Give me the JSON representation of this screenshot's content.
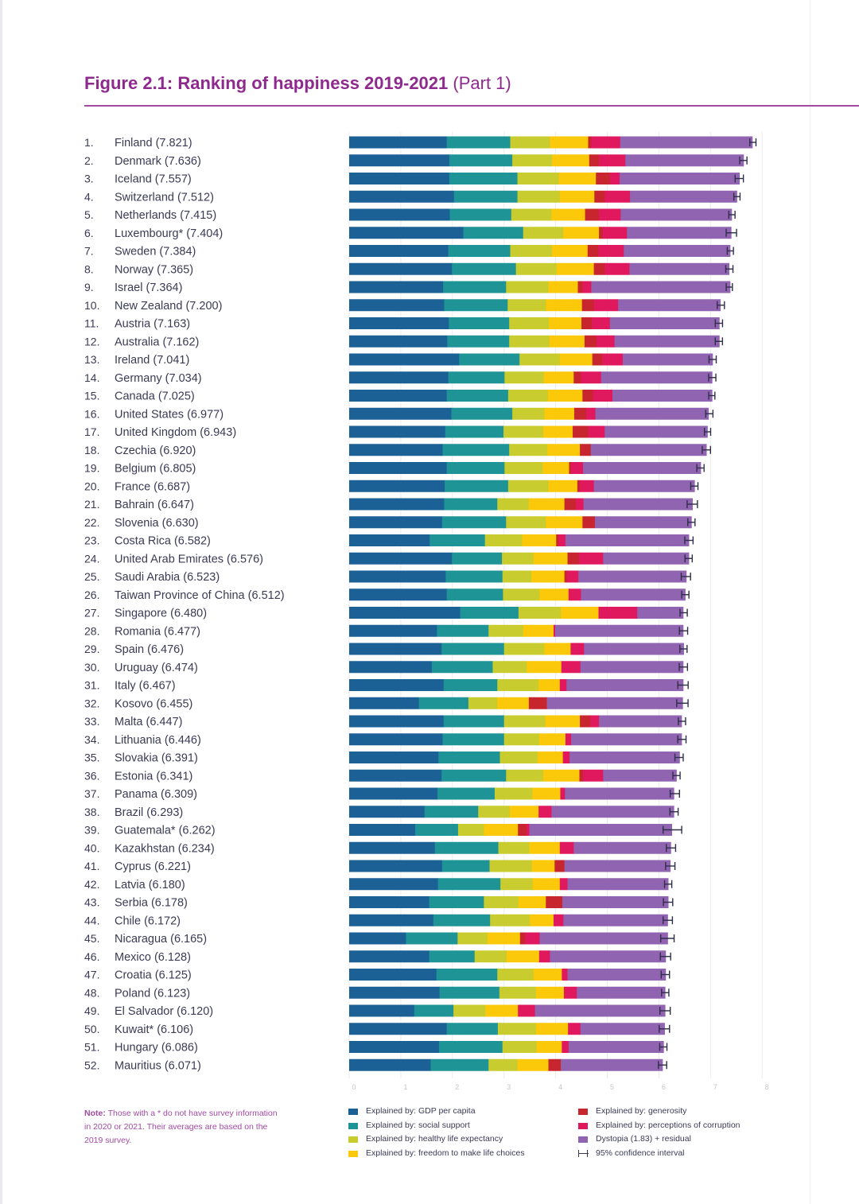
{
  "title": {
    "main": "Figure 2.1: Ranking of happiness 2019-2021",
    "part": "(Part 1)"
  },
  "note": {
    "label": "Note:",
    "text": "Those with a * do not have survey information in 2020 or 2021. Their averages are based on the 2019 survey."
  },
  "legend": {
    "gdp": "Explained by: GDP per capita",
    "social": "Explained by: social support",
    "health": "Explained by: healthy life expectancy",
    "freedom": "Explained by: freedom to make life choices",
    "generosity": "Explained by: generosity",
    "corruption": "Explained by: perceptions of corruption",
    "dystopia": "Dystopia (1.83) + residual",
    "ci": "95% confidence interval"
  },
  "colors": {
    "gdp": "#1b6196",
    "social": "#1e9497",
    "health": "#c8cc2e",
    "freedom": "#fbc80a",
    "generosity": "#c7262e",
    "corruption": "#e0185e",
    "dystopia": "#9064b0",
    "title": "#8e2a8e"
  },
  "chart_data": {
    "type": "bar",
    "orientation": "horizontal",
    "stacked": true,
    "xlim": [
      0,
      8
    ],
    "x_ticks": [
      "0",
      "1",
      "2",
      "3",
      "4",
      "5",
      "6",
      "7",
      "8"
    ],
    "grid": true,
    "series_names": [
      "Explained by: GDP per capita",
      "Explained by: social support",
      "Explained by: healthy life expectancy",
      "Explained by: freedom to make life choices",
      "Explained by: generosity",
      "Explained by: perceptions of corruption",
      "Dystopia (1.83) + residual"
    ],
    "rows": [
      {
        "rank": "1.",
        "label": "Finland (7.821)",
        "score": 7.821,
        "ci": 0.06,
        "comps": [
          1.89,
          1.23,
          0.77,
          0.74,
          0.06,
          0.56,
          2.56
        ]
      },
      {
        "rank": "2.",
        "label": "Denmark (7.636)",
        "score": 7.636,
        "ci": 0.07,
        "comps": [
          1.94,
          1.22,
          0.77,
          0.72,
          0.19,
          0.51,
          2.29
        ]
      },
      {
        "rank": "3.",
        "label": "Iceland (7.557)",
        "score": 7.557,
        "ci": 0.08,
        "comps": [
          1.94,
          1.32,
          0.8,
          0.72,
          0.27,
          0.19,
          2.32
        ]
      },
      {
        "rank": "4.",
        "label": "Switzerland (7.512)",
        "score": 7.512,
        "ci": 0.06,
        "comps": [
          2.03,
          1.23,
          0.82,
          0.67,
          0.2,
          0.49,
          2.07
        ]
      },
      {
        "rank": "5.",
        "label": "Netherlands (7.415)",
        "score": 7.415,
        "ci": 0.06,
        "comps": [
          1.95,
          1.19,
          0.78,
          0.65,
          0.27,
          0.42,
          2.15
        ]
      },
      {
        "rank": "6.",
        "label": "Luxembourg* (7.404)",
        "score": 7.404,
        "ci": 0.1,
        "comps": [
          2.21,
          1.16,
          0.78,
          0.69,
          0.07,
          0.47,
          2.02
        ]
      },
      {
        "rank": "7.",
        "label": "Sweden (7.384)",
        "score": 7.384,
        "ci": 0.06,
        "comps": [
          1.92,
          1.2,
          0.81,
          0.69,
          0.21,
          0.49,
          2.06
        ]
      },
      {
        "rank": "8.",
        "label": "Norway (7.365)",
        "score": 7.365,
        "ci": 0.07,
        "comps": [
          1.99,
          1.24,
          0.79,
          0.72,
          0.21,
          0.48,
          1.93
        ]
      },
      {
        "rank": "9.",
        "label": "Israel (7.364)",
        "score": 7.364,
        "ci": 0.06,
        "comps": [
          1.82,
          1.22,
          0.82,
          0.57,
          0.09,
          0.17,
          2.69
        ]
      },
      {
        "rank": "10.",
        "label": "New Zealand (7.200)",
        "score": 7.2,
        "ci": 0.07,
        "comps": [
          1.84,
          1.23,
          0.74,
          0.7,
          0.23,
          0.47,
          1.98
        ]
      },
      {
        "rank": "11.",
        "label": "Austria (7.163)",
        "score": 7.163,
        "ci": 0.07,
        "comps": [
          1.93,
          1.17,
          0.77,
          0.63,
          0.2,
          0.35,
          2.12
        ]
      },
      {
        "rank": "12.",
        "label": "Australia (7.162)",
        "score": 7.162,
        "ci": 0.07,
        "comps": [
          1.9,
          1.2,
          0.78,
          0.68,
          0.23,
          0.35,
          2.03
        ]
      },
      {
        "rank": "13.",
        "label": "Ireland (7.041)",
        "score": 7.041,
        "ci": 0.07,
        "comps": [
          2.13,
          1.17,
          0.78,
          0.63,
          0.19,
          0.4,
          1.74
        ]
      },
      {
        "rank": "14.",
        "label": "Germany (7.034)",
        "score": 7.034,
        "ci": 0.07,
        "comps": [
          1.92,
          1.09,
          0.76,
          0.58,
          0.14,
          0.39,
          2.15
        ]
      },
      {
        "rank": "15.",
        "label": "Canada (7.025)",
        "score": 7.025,
        "ci": 0.06,
        "comps": [
          1.89,
          1.19,
          0.77,
          0.67,
          0.2,
          0.38,
          1.93
        ]
      },
      {
        "rank": "16.",
        "label": "United States (6.977)",
        "score": 6.977,
        "ci": 0.07,
        "comps": [
          1.98,
          1.18,
          0.62,
          0.58,
          0.23,
          0.18,
          2.19
        ]
      },
      {
        "rank": "17.",
        "label": "United Kingdom (6.943)",
        "score": 6.943,
        "ci": 0.06,
        "comps": [
          1.86,
          1.13,
          0.77,
          0.57,
          0.3,
          0.32,
          1.99
        ]
      },
      {
        "rank": "18.",
        "label": "Czechia (6.920)",
        "score": 6.92,
        "ci": 0.08,
        "comps": [
          1.81,
          1.29,
          0.74,
          0.63,
          0.21,
          0.0,
          2.24
        ]
      },
      {
        "rank": "19.",
        "label": "Belgium (6.805)",
        "score": 6.805,
        "ci": 0.07,
        "comps": [
          1.89,
          1.12,
          0.74,
          0.51,
          0.04,
          0.23,
          2.28
        ]
      },
      {
        "rank": "20.",
        "label": "France (6.687)",
        "score": 6.687,
        "ci": 0.07,
        "comps": [
          1.85,
          1.23,
          0.78,
          0.56,
          0.05,
          0.27,
          1.95
        ]
      },
      {
        "rank": "21.",
        "label": "Bahrain (6.647)",
        "score": 6.647,
        "ci": 0.1,
        "comps": [
          1.84,
          1.03,
          0.61,
          0.69,
          0.22,
          0.15,
          2.11
        ]
      },
      {
        "rank": "22.",
        "label": "Slovenia (6.630)",
        "score": 6.63,
        "ci": 0.07,
        "comps": [
          1.8,
          1.24,
          0.77,
          0.71,
          0.24,
          0.0,
          1.87
        ]
      },
      {
        "rank": "23.",
        "label": "Costa Rica (6.582)",
        "score": 6.582,
        "ci": 0.08,
        "comps": [
          1.56,
          1.07,
          0.72,
          0.66,
          0.05,
          0.13,
          2.39
        ]
      },
      {
        "rank": "24.",
        "label": "United Arab Emirates (6.576)",
        "score": 6.576,
        "ci": 0.07,
        "comps": [
          1.99,
          0.97,
          0.61,
          0.66,
          0.22,
          0.47,
          1.66
        ]
      },
      {
        "rank": "25.",
        "label": "Saudi Arabia (6.523)",
        "score": 6.523,
        "ci": 0.09,
        "comps": [
          1.87,
          1.1,
          0.56,
          0.64,
          0.05,
          0.22,
          2.09
        ]
      },
      {
        "rank": "26.",
        "label": "Taiwan Province of China (6.512)",
        "score": 6.512,
        "ci": 0.07,
        "comps": [
          1.89,
          1.09,
          0.71,
          0.56,
          0.0,
          0.24,
          2.02
        ]
      },
      {
        "rank": "27.",
        "label": "Singapore (6.480)",
        "score": 6.48,
        "ci": 0.07,
        "comps": [
          2.15,
          1.13,
          0.82,
          0.73,
          0.0,
          0.75,
          0.89
        ]
      },
      {
        "rank": "28.",
        "label": "Romania (6.477)",
        "score": 6.477,
        "ci": 0.08,
        "comps": [
          1.7,
          1.0,
          0.67,
          0.59,
          0.0,
          0.03,
          2.48
        ]
      },
      {
        "rank": "29.",
        "label": "Spain (6.476)",
        "score": 6.476,
        "ci": 0.07,
        "comps": [
          1.79,
          1.21,
          0.78,
          0.51,
          0.0,
          0.26,
          1.93
        ]
      },
      {
        "rank": "30.",
        "label": "Uruguay (6.474)",
        "score": 6.474,
        "ci": 0.08,
        "comps": [
          1.6,
          1.18,
          0.66,
          0.67,
          0.0,
          0.37,
          1.99
        ]
      },
      {
        "rank": "31.",
        "label": "Italy (6.467)",
        "score": 6.467,
        "ci": 0.1,
        "comps": [
          1.83,
          1.04,
          0.8,
          0.41,
          0.0,
          0.13,
          2.26
        ]
      },
      {
        "rank": "32.",
        "label": "Kosovo (6.455)",
        "score": 6.455,
        "ci": 0.11,
        "comps": [
          1.35,
          0.96,
          0.56,
          0.61,
          0.35,
          0.0,
          2.63
        ]
      },
      {
        "rank": "33.",
        "label": "Malta (6.447)",
        "score": 6.447,
        "ci": 0.07,
        "comps": [
          1.83,
          1.17,
          0.8,
          0.67,
          0.2,
          0.17,
          1.6
        ]
      },
      {
        "rank": "34.",
        "label": "Lithuania (6.446)",
        "score": 6.446,
        "ci": 0.08,
        "comps": [
          1.81,
          1.19,
          0.68,
          0.51,
          0.0,
          0.11,
          2.14
        ]
      },
      {
        "rank": "35.",
        "label": "Slovakia (6.391)",
        "score": 6.391,
        "ci": 0.08,
        "comps": [
          1.73,
          1.19,
          0.73,
          0.49,
          0.0,
          0.13,
          2.13
        ]
      },
      {
        "rank": "36.",
        "label": "Estonia (6.341)",
        "score": 6.341,
        "ci": 0.07,
        "comps": [
          1.79,
          1.25,
          0.72,
          0.7,
          0.07,
          0.39,
          1.42
        ]
      },
      {
        "rank": "37.",
        "label": "Panama (6.309)",
        "score": 6.309,
        "ci": 0.09,
        "comps": [
          1.71,
          1.11,
          0.73,
          0.54,
          0.0,
          0.09,
          2.11
        ]
      },
      {
        "rank": "38.",
        "label": "Brazil (6.293)",
        "score": 6.293,
        "ci": 0.08,
        "comps": [
          1.46,
          1.04,
          0.61,
          0.56,
          0.0,
          0.25,
          2.37
        ]
      },
      {
        "rank": "39.",
        "label": "Guatemala* (6.262)",
        "score": 6.262,
        "ci": 0.18,
        "comps": [
          1.28,
          0.83,
          0.5,
          0.66,
          0.16,
          0.06,
          2.76
        ]
      },
      {
        "rank": "40.",
        "label": "Kazakhstan (6.234)",
        "score": 6.234,
        "ci": 0.09,
        "comps": [
          1.66,
          1.23,
          0.6,
          0.59,
          0.0,
          0.27,
          1.88
        ]
      },
      {
        "rank": "41.",
        "label": "Cyprus (6.221)",
        "score": 6.221,
        "ci": 0.09,
        "comps": [
          1.8,
          0.92,
          0.82,
          0.44,
          0.19,
          0.0,
          2.05
        ]
      },
      {
        "rank": "42.",
        "label": "Latvia (6.180)",
        "score": 6.18,
        "ci": 0.07,
        "comps": [
          1.72,
          1.21,
          0.62,
          0.53,
          0.0,
          0.15,
          1.95
        ]
      },
      {
        "rank": "43.",
        "label": "Serbia (6.178)",
        "score": 6.178,
        "ci": 0.09,
        "comps": [
          1.55,
          1.06,
          0.67,
          0.53,
          0.32,
          0.0,
          2.05
        ]
      },
      {
        "rank": "44.",
        "label": "Chile (6.172)",
        "score": 6.172,
        "ci": 0.09,
        "comps": [
          1.63,
          1.1,
          0.77,
          0.46,
          0.0,
          0.19,
          2.02
        ]
      },
      {
        "rank": "45.",
        "label": "Nicaragua (6.165)",
        "score": 6.165,
        "ci": 0.13,
        "comps": [
          1.1,
          1.0,
          0.58,
          0.63,
          0.1,
          0.28,
          2.48
        ]
      },
      {
        "rank": "46.",
        "label": "Mexico (6.128)",
        "score": 6.128,
        "ci": 0.1,
        "comps": [
          1.55,
          0.88,
          0.62,
          0.63,
          0.0,
          0.21,
          2.24
        ]
      },
      {
        "rank": "47.",
        "label": "Croatia (6.125)",
        "score": 6.125,
        "ci": 0.08,
        "comps": [
          1.69,
          1.18,
          0.7,
          0.55,
          0.0,
          0.11,
          1.9
        ]
      },
      {
        "rank": "48.",
        "label": "Poland (6.123)",
        "score": 6.123,
        "ci": 0.07,
        "comps": [
          1.75,
          1.16,
          0.71,
          0.54,
          0.0,
          0.25,
          1.71
        ]
      },
      {
        "rank": "49.",
        "label": "El Salvador (6.120)",
        "score": 6.12,
        "ci": 0.1,
        "comps": [
          1.26,
          0.76,
          0.62,
          0.63,
          0.0,
          0.33,
          2.52
        ]
      },
      {
        "rank": "50.",
        "label": "Kuwait* (6.106)",
        "score": 6.106,
        "ci": 0.1,
        "comps": [
          1.89,
          0.99,
          0.74,
          0.62,
          0.0,
          0.24,
          1.63
        ]
      },
      {
        "rank": "51.",
        "label": "Hungary (6.086)",
        "score": 6.086,
        "ci": 0.07,
        "comps": [
          1.74,
          1.23,
          0.66,
          0.49,
          0.0,
          0.13,
          1.84
        ]
      },
      {
        "rank": "52.",
        "label": "Mauritius (6.071)",
        "score": 6.071,
        "ci": 0.08,
        "comps": [
          1.58,
          1.12,
          0.56,
          0.6,
          0.24,
          0.0,
          1.97
        ]
      }
    ]
  }
}
